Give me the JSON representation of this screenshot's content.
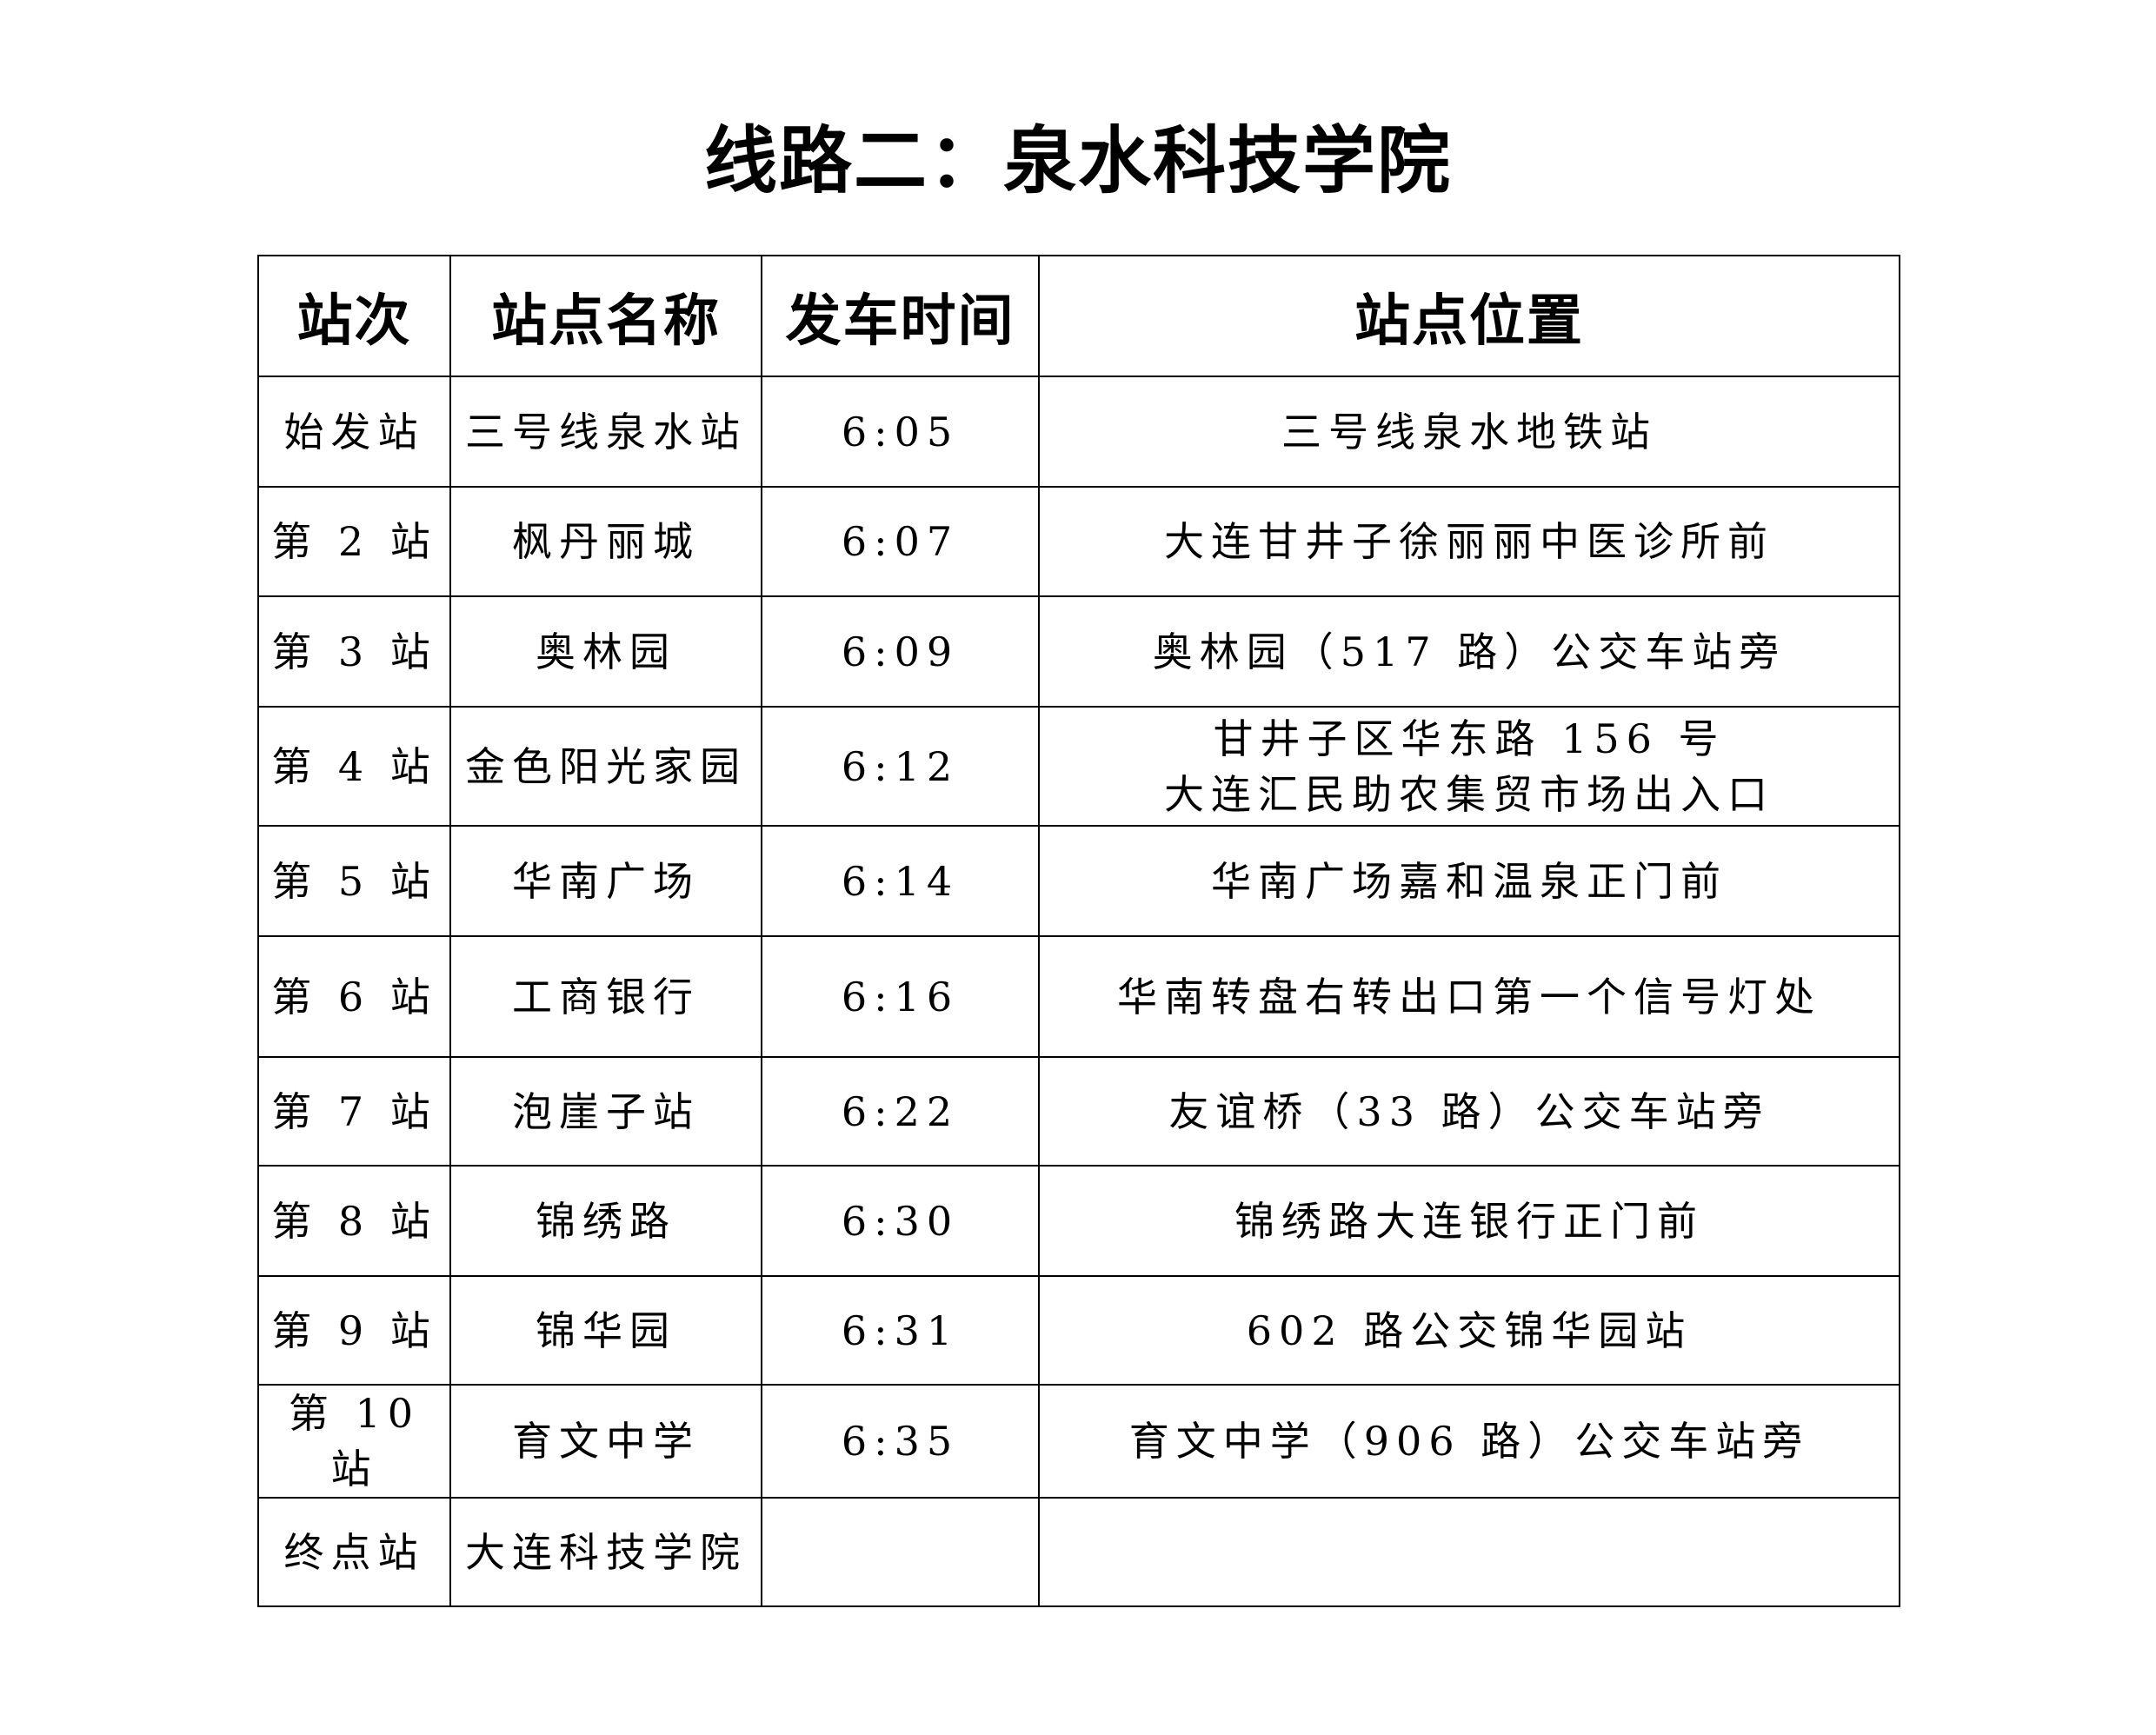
{
  "title": "线路二：泉水科技学院",
  "table": {
    "headers": [
      "站次",
      "站点名称",
      "发车时间",
      "站点位置"
    ],
    "rows": [
      {
        "stop": "始发站",
        "name": "三号线泉水站",
        "time": "6:05",
        "location": [
          "三号线泉水地铁站"
        ]
      },
      {
        "stop": "第 2 站",
        "name": "枫丹丽城",
        "time": "6:07",
        "location": [
          "大连甘井子徐丽丽中医诊所前"
        ]
      },
      {
        "stop": "第 3 站",
        "name": "奥林园",
        "time": "6:09",
        "location": [
          "奥林园（517 路）公交车站旁"
        ]
      },
      {
        "stop": "第 4 站",
        "name": "金色阳光家园",
        "time": "6:12",
        "location": [
          "甘井子区华东路 156 号",
          "大连汇民助农集贸市场出入口"
        ]
      },
      {
        "stop": "第 5 站",
        "name": "华南广场",
        "time": "6:14",
        "location": [
          "华南广场嘉和温泉正门前"
        ]
      },
      {
        "stop": "第 6 站",
        "name": "工商银行",
        "time": "6:16",
        "location": [
          "华南转盘右转出口第一个信号灯处"
        ]
      },
      {
        "stop": "第 7 站",
        "name": "泡崖子站",
        "time": "6:22",
        "location": [
          "友谊桥（33 路）公交车站旁"
        ]
      },
      {
        "stop": "第 8 站",
        "name": "锦绣路",
        "time": "6:30",
        "location": [
          "锦绣路大连银行正门前"
        ]
      },
      {
        "stop": "第 9 站",
        "name": "锦华园",
        "time": "6:31",
        "location": [
          "602 路公交锦华园站"
        ]
      },
      {
        "stop": "第 10 站",
        "name": "育文中学",
        "time": "6:35",
        "location": [
          "育文中学（906 路）公交车站旁"
        ]
      },
      {
        "stop": "终点站",
        "name": "大连科技学院",
        "time": "",
        "location": [
          ""
        ]
      }
    ]
  }
}
